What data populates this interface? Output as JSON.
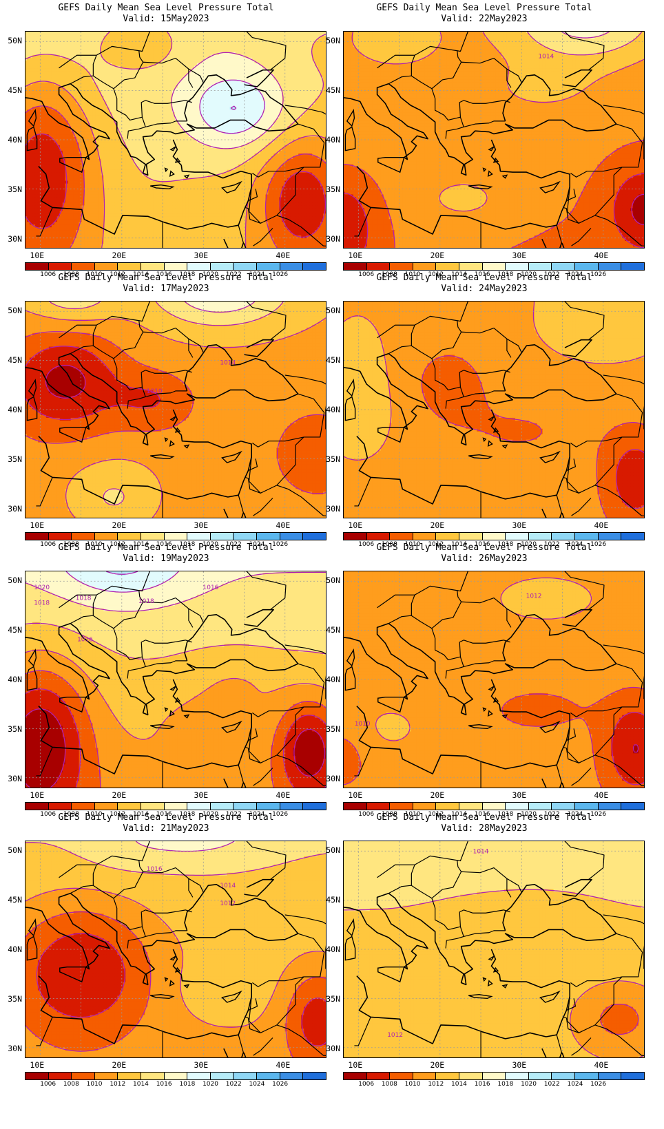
{
  "product_title": "GEFS Daily Mean Sea Level Pressure Total",
  "valid_prefix": "Valid:",
  "lat_ticks": [
    "50N",
    "45N",
    "40N",
    "35N",
    "30N"
  ],
  "lon_ticks": [
    "10E",
    "20E",
    "30E",
    "40E"
  ],
  "colorbar": {
    "colors": [
      "#a80000",
      "#d81a00",
      "#f55d00",
      "#ff9d1d",
      "#ffc73e",
      "#ffe680",
      "#fff9c9",
      "#e2fbfd",
      "#b6ecf8",
      "#8fd7f5",
      "#5bb7ee",
      "#3a8ee5",
      "#1f6fdc"
    ],
    "labels": [
      "1006",
      "1008",
      "1010",
      "1012",
      "1014",
      "1016",
      "1018",
      "1020",
      "1022",
      "1024",
      "1026"
    ]
  },
  "contour_color": "#b020b0",
  "coast_color": "#000000",
  "panels": [
    {
      "id": "p1",
      "valid": "Valid: 15May2023",
      "labels": []
    },
    {
      "id": "p2",
      "valid": "Valid: 22May2023",
      "labels": [
        "1014"
      ]
    },
    {
      "id": "p3",
      "valid": "Valid: 17May2023",
      "labels": [
        "1010",
        "1014"
      ]
    },
    {
      "id": "p4",
      "valid": "Valid: 24May2023",
      "labels": []
    },
    {
      "id": "p5",
      "valid": "Valid: 19May2023",
      "labels": [
        "1020",
        "1018",
        "1018",
        "1016",
        "1018",
        "1016"
      ]
    },
    {
      "id": "p6",
      "valid": "Valid: 26May2023",
      "labels": [
        "1012",
        "1010"
      ]
    },
    {
      "id": "p7",
      "valid": "Valid: 21May2023",
      "labels": [
        "1016",
        "1014",
        "1012"
      ]
    },
    {
      "id": "p8",
      "valid": "Valid: 28May2023",
      "labels": [
        "1014",
        "1012"
      ]
    }
  ]
}
